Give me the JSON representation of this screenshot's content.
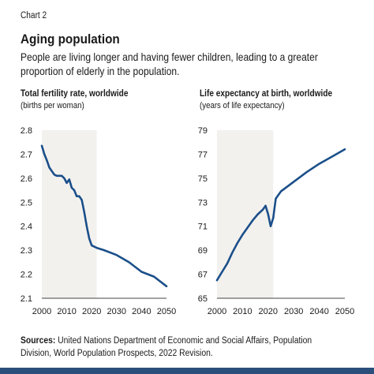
{
  "chart_label": "Chart 2",
  "title": "Aging population",
  "subtitle": "People are living longer and having fewer children, leading to a greater proportion of elderly in the population.",
  "sources": {
    "prefix": "Sources:",
    "text": " United Nations Department of Economic and Social Affairs, Population Division, World Population Prospects, 2022 Revision."
  },
  "colors": {
    "line": "#1b4f8a",
    "shade": "#f3f1ee",
    "bottom_bar": "#2a4f7a"
  },
  "chart_data": [
    {
      "type": "line",
      "title": "Total fertility rate, worldwide",
      "ylabel": "(births per woman)",
      "xlabel": "",
      "xlim": [
        2000,
        2050
      ],
      "ylim": [
        2.1,
        2.8
      ],
      "xticks": [
        "2000",
        "2010",
        "2020",
        "2030",
        "2040",
        "2050"
      ],
      "yticks": [
        "2.8",
        "2.7",
        "2.6",
        "2.5",
        "2.4",
        "2.3",
        "2.2",
        "2.1"
      ],
      "shaded_x_range": [
        2000,
        2022
      ],
      "grid": false,
      "series": [
        {
          "x": [
            2000,
            2001,
            2002,
            2003,
            2004,
            2005,
            2006,
            2007,
            2008,
            2009,
            2010,
            2011,
            2012,
            2013,
            2014,
            2015,
            2016,
            2017,
            2018,
            2019,
            2020,
            2021,
            2022,
            2025,
            2030,
            2035,
            2040,
            2045,
            2050
          ],
          "y": [
            2.735,
            2.7,
            2.675,
            2.645,
            2.63,
            2.615,
            2.61,
            2.61,
            2.61,
            2.6,
            2.58,
            2.595,
            2.56,
            2.55,
            2.525,
            2.525,
            2.51,
            2.46,
            2.4,
            2.35,
            2.32,
            2.315,
            2.31,
            2.3,
            2.28,
            2.25,
            2.21,
            2.19,
            2.15
          ]
        }
      ]
    },
    {
      "type": "line",
      "title": "Life expectancy at birth, worldwide",
      "ylabel": "(years of life expectancy)",
      "xlabel": "",
      "xlim": [
        2000,
        2050
      ],
      "ylim": [
        65,
        79
      ],
      "xticks": [
        "2000",
        "2010",
        "2020",
        "2030",
        "2040",
        "2050"
      ],
      "yticks": [
        "79",
        "77",
        "75",
        "73",
        "71",
        "69",
        "67",
        "65"
      ],
      "shaded_x_range": [
        2000,
        2022
      ],
      "grid": false,
      "series": [
        {
          "x": [
            2000,
            2002,
            2004,
            2006,
            2008,
            2010,
            2012,
            2014,
            2016,
            2018,
            2019,
            2020,
            2021,
            2022,
            2023,
            2025,
            2030,
            2035,
            2040,
            2045,
            2050
          ],
          "y": [
            66.5,
            67.2,
            67.9,
            68.8,
            69.6,
            70.3,
            70.9,
            71.5,
            72.0,
            72.4,
            72.7,
            72.0,
            71.0,
            71.7,
            73.3,
            73.9,
            74.7,
            75.5,
            76.2,
            76.8,
            77.4
          ]
        }
      ]
    }
  ]
}
